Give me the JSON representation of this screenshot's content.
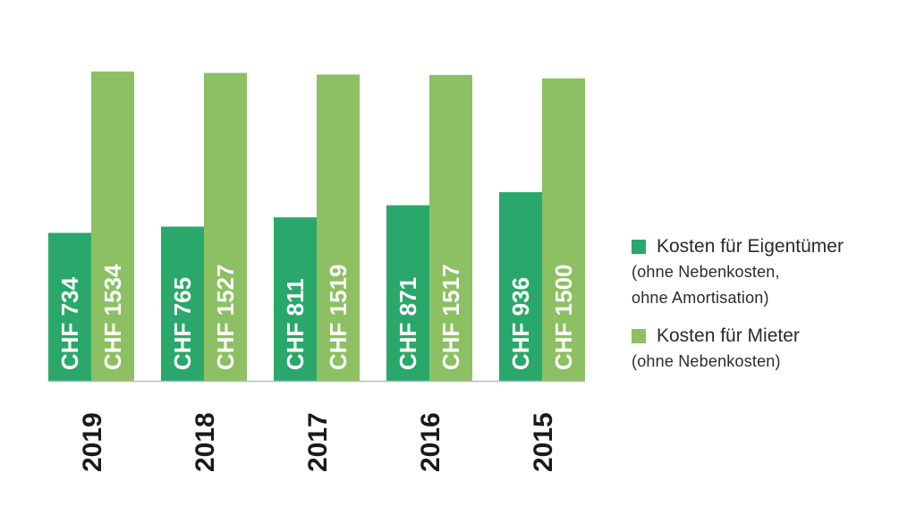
{
  "chart_data": {
    "type": "bar",
    "categories": [
      "2019",
      "2018",
      "2017",
      "2016",
      "2015"
    ],
    "series": [
      {
        "name": "Kosten für Eigentümer",
        "note": "(ohne Nebenkosten,\nohne Amortisation)",
        "color": "#2aa86b",
        "values": [
          734,
          765,
          811,
          871,
          936
        ],
        "labels": [
          "CHF 734",
          "CHF 765",
          "CHF 811",
          "CHF 871",
          "CHF 936"
        ]
      },
      {
        "name": "Kosten für Mieter",
        "note": "(ohne Nebenkosten)",
        "color": "#8cc063",
        "values": [
          1534,
          1527,
          1519,
          1517,
          1500
        ],
        "labels": [
          "CHF 1534",
          "CHF 1527",
          "CHF 1519",
          "CHF 1517",
          "CHF 1500"
        ]
      }
    ],
    "ylim": [
      0,
      1534
    ],
    "grid": false,
    "legend_position": "right",
    "title": "",
    "xlabel": "",
    "ylabel": ""
  }
}
